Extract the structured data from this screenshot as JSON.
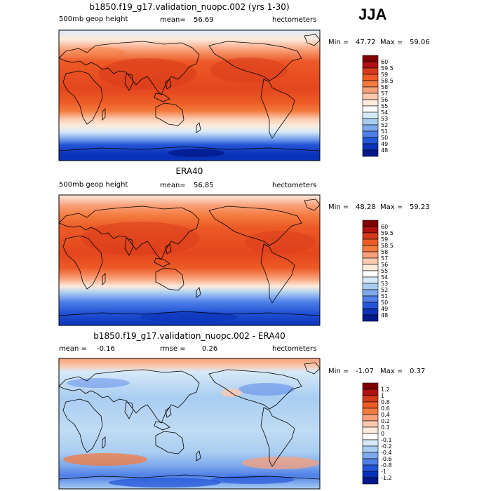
{
  "season": "JJA",
  "panels": [
    {
      "id": "model",
      "title": "b1850.f19_g17.validation_nuopc.002 (yrs 1-30)",
      "field": "500mb geop height",
      "stat1_label": "mean=",
      "stat1_value": "56.69",
      "stat2_label": "",
      "stat2_value": "",
      "units": "hectometers",
      "min_label": "Min =",
      "min_value": "47.72",
      "max_label": "Max =",
      "max_value": "59.06",
      "colorbar": {
        "labels": [
          "60",
          "59.5",
          "59",
          "58.5",
          "58",
          "57",
          "56",
          "55",
          "54",
          "53",
          "52",
          "51",
          "50",
          "49",
          "48"
        ],
        "colors": [
          "#7f0000",
          "#b01010",
          "#d73a1a",
          "#ec5a26",
          "#f47a3e",
          "#f9a07a",
          "#fbc9ae",
          "#fdebdc",
          "#ffffff",
          "#d6e9f8",
          "#a9cdf1",
          "#7ea9ec",
          "#4f7fe8",
          "#2355d8",
          "#0a32b8",
          "#001a8c"
        ]
      }
    },
    {
      "id": "obs",
      "title": "ERA40",
      "field": "500mb geop height",
      "stat1_label": "mean=",
      "stat1_value": "56.85",
      "stat2_label": "",
      "stat2_value": "",
      "units": "hectometers",
      "min_label": "Min =",
      "min_value": "48.28",
      "max_label": "Max =",
      "max_value": "59.23",
      "colorbar": {
        "labels": [
          "60",
          "59.5",
          "59",
          "58.5",
          "58",
          "57",
          "56",
          "55",
          "54",
          "53",
          "52",
          "51",
          "50",
          "49",
          "48"
        ],
        "colors": [
          "#7f0000",
          "#b01010",
          "#d73a1a",
          "#ec5a26",
          "#f47a3e",
          "#f9a07a",
          "#fbc9ae",
          "#fdebdc",
          "#ffffff",
          "#d6e9f8",
          "#a9cdf1",
          "#7ea9ec",
          "#4f7fe8",
          "#2355d8",
          "#0a32b8",
          "#001a8c"
        ]
      }
    },
    {
      "id": "diff",
      "title": "b1850.f19_g17.validation_nuopc.002 - ERA40",
      "field": "",
      "stat1_label": "mean =",
      "stat1_value": "-0.16",
      "stat2_label": "rmse =",
      "stat2_value": "0.26",
      "units": "hectometers",
      "min_label": "Min =",
      "min_value": "-1.07",
      "max_label": "Max =",
      "max_value": "0.37",
      "colorbar": {
        "labels": [
          "1.2",
          "1",
          "0.8",
          "0.6",
          "0.4",
          "0.2",
          "0.1",
          "0",
          "-0.1",
          "-0.2",
          "-0.4",
          "-0.6",
          "-0.8",
          "-1",
          "-1.2"
        ],
        "colors": [
          "#7f0000",
          "#b01010",
          "#d73a1a",
          "#ec5a26",
          "#f47a3e",
          "#f9a07a",
          "#fbc9ae",
          "#fdebdc",
          "#ffffff",
          "#d6e9f8",
          "#a9cdf1",
          "#7ea9ec",
          "#4f7fe8",
          "#2355d8",
          "#0a32b8",
          "#001a8c"
        ]
      }
    }
  ]
}
